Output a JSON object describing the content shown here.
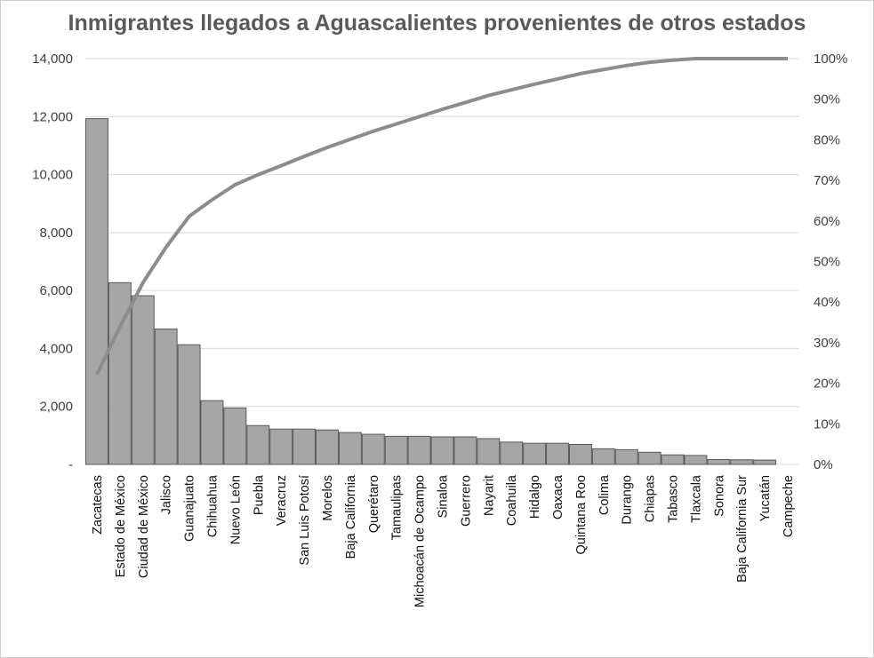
{
  "chart_data": {
    "type": "bar",
    "title": "Inmigrantes llegados a Aguascalientes provenientes de otros estados",
    "categories": [
      "Zacatecas",
      "Estado de México",
      "Ciudad de México",
      "Jalisco",
      "Guanajuato",
      "Chihuahua",
      "Nuevo León",
      "Puebla",
      "Veracruz",
      "San Luis Potosí",
      "Morelos",
      "Baja California",
      "Querétaro",
      "Tamaulipas",
      "Michoacán de Ocampo",
      "Sinaloa",
      "Guerrero",
      "Nayarit",
      "Coahuila",
      "Hidalgo",
      "Oaxaca",
      "Quintana Roo",
      "Colima",
      "Durango",
      "Chiapas",
      "Tabasco",
      "Tlaxcala",
      "Sonora",
      "Baja California Sur",
      "Yucatán",
      "Campeche"
    ],
    "series": [
      {
        "type": "bar",
        "values": [
          11930,
          6270,
          5820,
          4670,
          4130,
          2200,
          1950,
          1340,
          1220,
          1220,
          1190,
          1100,
          1040,
          970,
          970,
          950,
          950,
          890,
          770,
          730,
          730,
          690,
          540,
          510,
          420,
          330,
          310,
          170,
          160,
          150,
          0
        ]
      },
      {
        "type": "line",
        "axis": "right",
        "values": [
          22.2,
          33.9,
          44.8,
          53.5,
          61.1,
          65.2,
          68.9,
          71.4,
          73.6,
          75.9,
          78.1,
          80.1,
          82.1,
          83.9,
          85.7,
          87.5,
          89.2,
          90.9,
          92.3,
          93.7,
          95.0,
          96.3,
          97.3,
          98.3,
          99.1,
          99.6,
          100,
          100,
          100,
          100,
          100
        ]
      }
    ],
    "y_left": {
      "ylim": [
        0,
        14000
      ],
      "ticks": [
        "-",
        "2,000",
        "4,000",
        "6,000",
        "8,000",
        "10,000",
        "12,000",
        "14,000"
      ]
    },
    "y_right": {
      "ylim": [
        0,
        100
      ],
      "ticks": [
        "0%",
        "10%",
        "20%",
        "30%",
        "40%",
        "50%",
        "60%",
        "70%",
        "80%",
        "90%",
        "100%"
      ]
    },
    "grid": true,
    "colors": {
      "bar_fill": "#a6a6a6",
      "bar_stroke": "#595959",
      "line": "#8c8c8c",
      "grid": "#d9d9d9",
      "axis_text": "#404040"
    }
  }
}
